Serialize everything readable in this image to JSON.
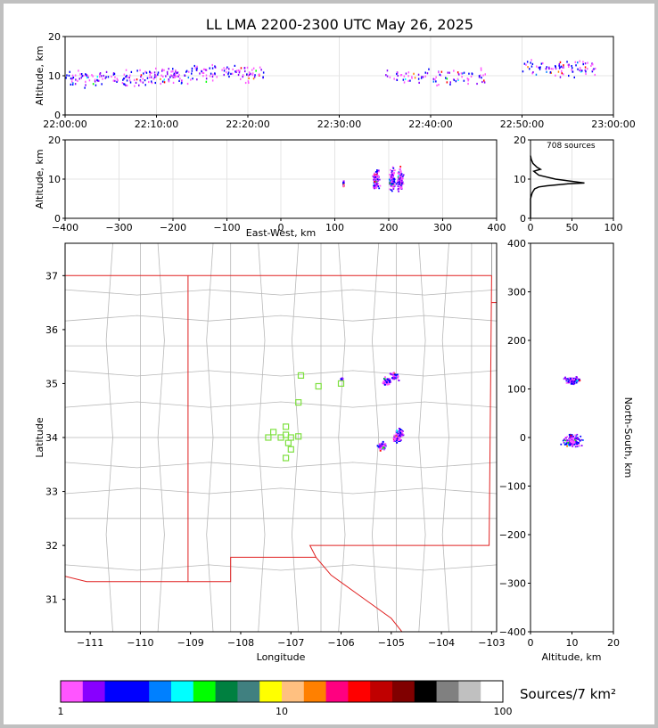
{
  "title": "LL LMA 2200-2300 UTC May 26, 2025",
  "colorbar": {
    "unit": "Sources/7 km²",
    "tick_labels": [
      "1",
      "10",
      "100"
    ],
    "colors": [
      "#ff55ff",
      "#8800ff",
      "#0000ff",
      "#0000ff",
      "#0080ff",
      "#00ffff",
      "#00ff00",
      "#008040",
      "#408080",
      "#ffff00",
      "#ffc080",
      "#ff8000",
      "#ff0080",
      "#ff0000",
      "#c00000",
      "#800000",
      "#000000",
      "#808080",
      "#c0c0c0",
      "#ffffff"
    ]
  },
  "chart_data": [
    {
      "id": "time_height",
      "type": "scatter",
      "xlabel": "",
      "ylabel": "Altitude, km",
      "x_tick_labels": [
        "22:00:00",
        "22:10:00",
        "22:20:00",
        "22:30:00",
        "22:40:00",
        "22:50:00",
        "23:00:00"
      ],
      "xlim": [
        "22:00:00",
        "23:00:00"
      ],
      "ylim": [
        0,
        20
      ],
      "y_ticks": [
        0,
        10,
        20
      ],
      "clusters": [
        {
          "t_start_min": 0,
          "t_end_min": 8,
          "alt": 9.5
        },
        {
          "t_start_min": 8,
          "t_end_min": 14,
          "alt": 10
        },
        {
          "t_start_min": 14,
          "t_end_min": 22,
          "alt": 11
        },
        {
          "t_start_min": 35,
          "t_end_min": 46,
          "alt": 10
        },
        {
          "t_start_min": 50,
          "t_end_min": 58,
          "alt": 12
        }
      ]
    },
    {
      "id": "ew_height",
      "type": "scatter",
      "xlabel": "East-West, km",
      "ylabel": "Altitude, km",
      "xlim": [
        -400,
        400
      ],
      "x_ticks": [
        -400,
        -300,
        -200,
        -100,
        0,
        100,
        200,
        300,
        400
      ],
      "ylim": [
        0,
        20
      ],
      "y_ticks": [
        0,
        10,
        20
      ],
      "clusters": [
        {
          "x": 115,
          "alt": 9
        },
        {
          "x": 175,
          "alt": 10
        },
        {
          "x": 205,
          "alt": 10
        },
        {
          "x": 220,
          "alt": 10
        }
      ]
    },
    {
      "id": "height_histogram",
      "type": "line",
      "annotation": "708 sources",
      "xlim": [
        0,
        100
      ],
      "x_ticks": [
        0,
        50,
        100
      ],
      "ylim": [
        0,
        20
      ],
      "y_ticks": [
        0,
        10,
        20
      ],
      "x": [
        0,
        0,
        2,
        5,
        10,
        20,
        30,
        45,
        65,
        30,
        10,
        4,
        12,
        8,
        3,
        1,
        0
      ],
      "alt": [
        0,
        5,
        6.5,
        7.5,
        8,
        8.3,
        8.5,
        8.8,
        9,
        10,
        11,
        12,
        12.5,
        13,
        14,
        15,
        16
      ]
    },
    {
      "id": "plan_view",
      "type": "scatter",
      "xlabel": "Longitude",
      "ylabel": "Latitude",
      "xlim": [
        -111.5,
        -102.9
      ],
      "ylim": [
        30.4,
        37.6
      ],
      "x_ticks": [
        -111,
        -110,
        -109,
        -108,
        -107,
        -106,
        -105,
        -104,
        -103
      ],
      "y_ticks": [
        31,
        32,
        33,
        34,
        35,
        36,
        37
      ],
      "stations": [
        {
          "lon": -106.8,
          "lat": 35.15
        },
        {
          "lon": -106.45,
          "lat": 34.95
        },
        {
          "lon": -106.0,
          "lat": 35.0
        },
        {
          "lon": -106.85,
          "lat": 34.65
        },
        {
          "lon": -107.1,
          "lat": 34.2
        },
        {
          "lon": -107.35,
          "lat": 34.1
        },
        {
          "lon": -107.1,
          "lat": 34.05
        },
        {
          "lon": -107.45,
          "lat": 34.0
        },
        {
          "lon": -107.2,
          "lat": 34.0
        },
        {
          "lon": -107.0,
          "lat": 34.0
        },
        {
          "lon": -106.85,
          "lat": 34.02
        },
        {
          "lon": -107.05,
          "lat": 33.9
        },
        {
          "lon": -107.0,
          "lat": 33.78
        },
        {
          "lon": -107.1,
          "lat": 33.62
        }
      ],
      "clusters": [
        {
          "lon": -106.0,
          "lat": 35.1
        },
        {
          "lon": -105.1,
          "lat": 35.05
        },
        {
          "lon": -104.95,
          "lat": 35.15
        },
        {
          "lon": -105.2,
          "lat": 33.85
        },
        {
          "lon": -104.9,
          "lat": 34.0
        },
        {
          "lon": -104.85,
          "lat": 34.1
        }
      ]
    },
    {
      "id": "height_ns",
      "type": "scatter",
      "xlabel": "Altitude, km",
      "ylabel": "North-South, km",
      "xlim": [
        0,
        20
      ],
      "x_ticks": [
        0,
        10,
        20
      ],
      "ylim": [
        -400,
        400
      ],
      "y_ticks": [
        -400,
        -300,
        -200,
        -100,
        0,
        100,
        200,
        300,
        400
      ],
      "clusters": [
        {
          "alt": 10,
          "y": 120
        },
        {
          "alt": 10,
          "y": 0
        },
        {
          "alt": 10,
          "y": -10
        }
      ]
    }
  ]
}
